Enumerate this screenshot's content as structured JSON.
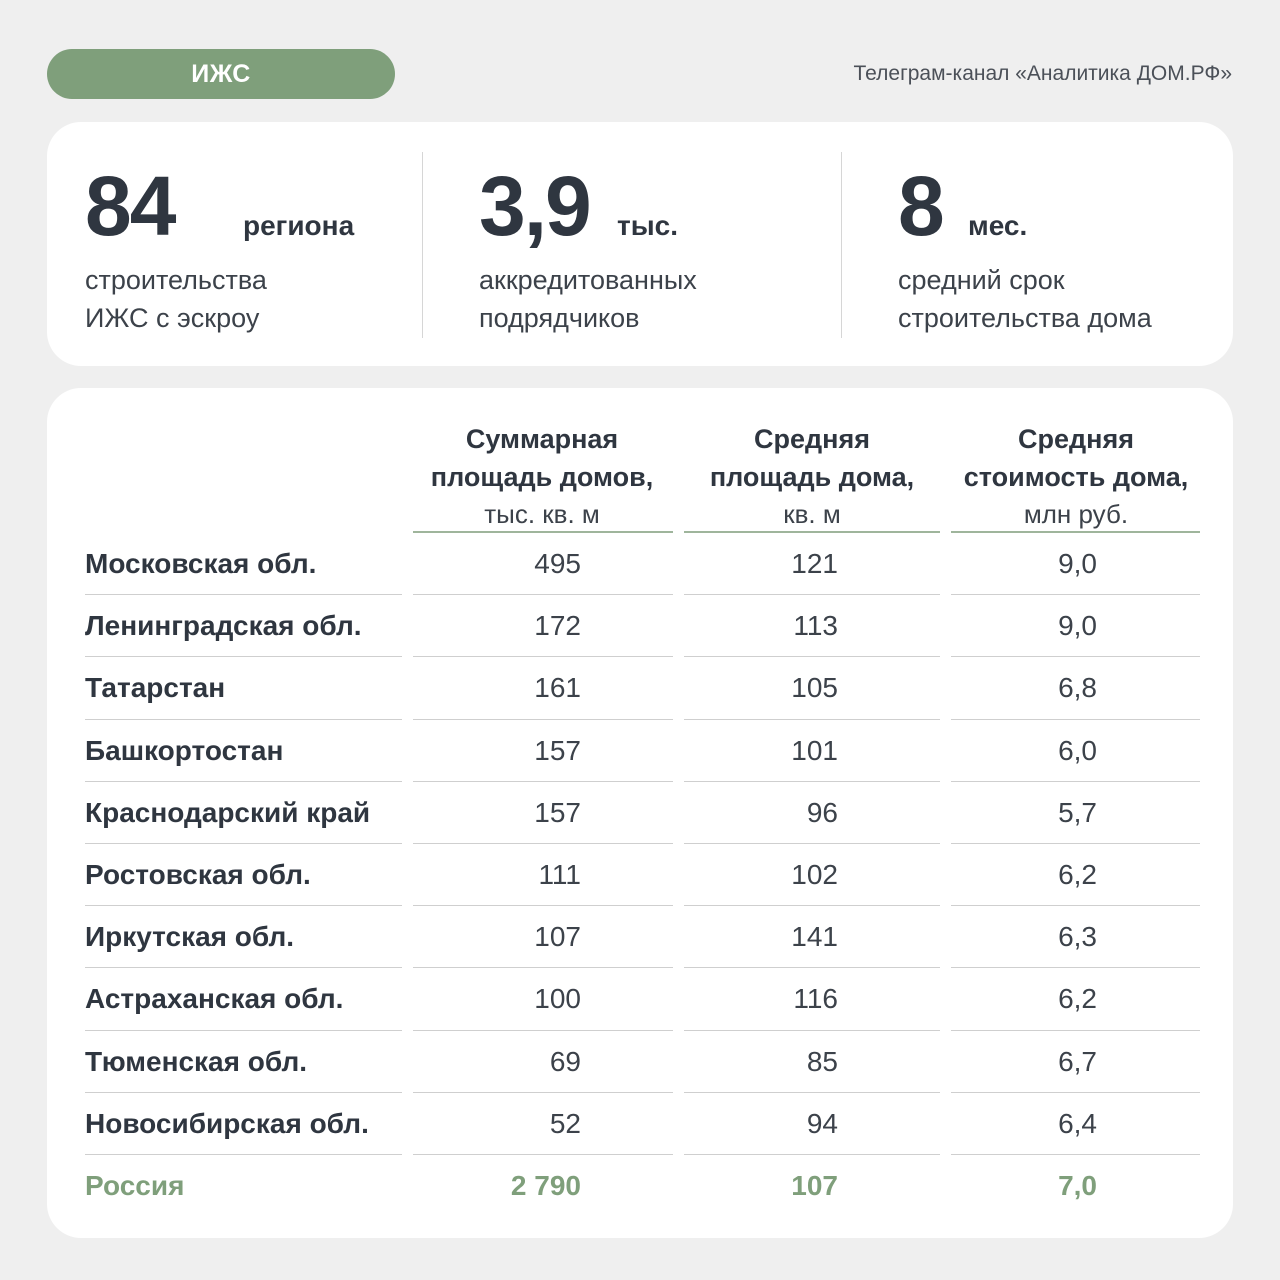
{
  "header": {
    "tag": "ИЖС",
    "source": "Телеграм-канал «Аналитика ДОМ.РФ»"
  },
  "stats": [
    {
      "value": "84",
      "unit": "региона",
      "desc_line1": "строительства",
      "desc_line2": "ИЖС с эскроу"
    },
    {
      "value": "3,9",
      "unit": "тыс.",
      "desc_line1": "аккредитованных",
      "desc_line2": "подрядчиков"
    },
    {
      "value": "8",
      "unit": "мес.",
      "desc_line1": "средний срок",
      "desc_line2": "строительства дома"
    }
  ],
  "table": {
    "columns": [
      {
        "line1": "Суммарная",
        "line2": "площадь домов,",
        "unit": "тыс. кв. м"
      },
      {
        "line1": "Средняя",
        "line2": "площадь дома,",
        "unit": "кв. м"
      },
      {
        "line1": "Средняя",
        "line2": "стоимость дома,",
        "unit": "млн руб."
      }
    ],
    "rows": [
      {
        "region": "Московская обл.",
        "total_area": "495",
        "avg_area": "121",
        "avg_price": "9,0"
      },
      {
        "region": "Ленинградская обл.",
        "total_area": "172",
        "avg_area": "113",
        "avg_price": "9,0"
      },
      {
        "region": "Татарстан",
        "total_area": "161",
        "avg_area": "105",
        "avg_price": "6,8"
      },
      {
        "region": "Башкортостан",
        "total_area": "157",
        "avg_area": "101",
        "avg_price": "6,0"
      },
      {
        "region": "Краснодарский край",
        "total_area": "157",
        "avg_area": "96",
        "avg_price": "5,7"
      },
      {
        "region": "Ростовская обл.",
        "total_area": "111",
        "avg_area": "102",
        "avg_price": "6,2"
      },
      {
        "region": "Иркутская обл.",
        "total_area": "107",
        "avg_area": "141",
        "avg_price": "6,3"
      },
      {
        "region": "Астраханская обл.",
        "total_area": "100",
        "avg_area": "116",
        "avg_price": "6,2"
      },
      {
        "region": "Тюменская обл.",
        "total_area": "69",
        "avg_area": "85",
        "avg_price": "6,7"
      },
      {
        "region": "Новосибирская обл.",
        "total_area": "52",
        "avg_area": "94",
        "avg_price": "6,4"
      }
    ],
    "total": {
      "region": "Россия",
      "total_area": "2 790",
      "avg_area": "107",
      "avg_price": "7,0"
    }
  },
  "colors": {
    "accent": "#7f9f7b",
    "text": "#2f3640",
    "background": "#efefef"
  }
}
